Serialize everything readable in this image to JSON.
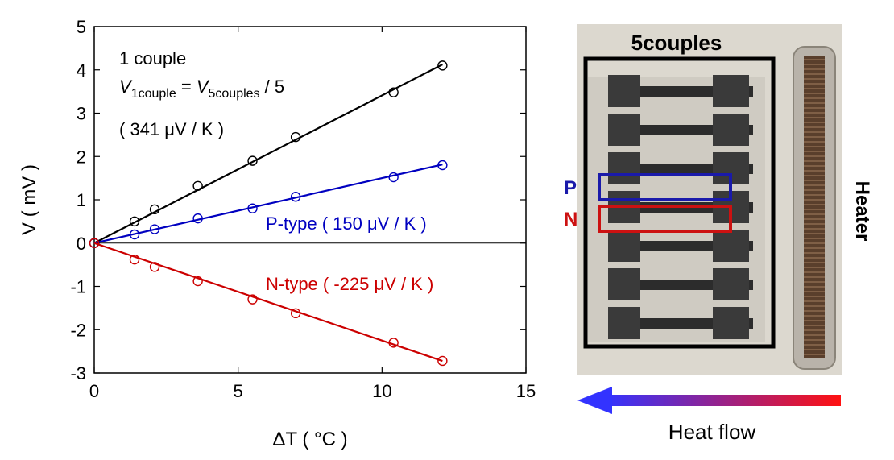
{
  "chart_data": {
    "type": "scatter",
    "xlabel": "ΔT ( °C )",
    "ylabel": "V ( mV )",
    "xlim": [
      0,
      15
    ],
    "ylim": [
      -3,
      5
    ],
    "xticks": [
      "0",
      "5",
      "10",
      "15"
    ],
    "yticks": [
      "-3",
      "-2",
      "-1",
      "0",
      "1",
      "2",
      "3",
      "4",
      "5"
    ],
    "zero_line": true,
    "grid": false,
    "series": [
      {
        "name": "1 couple",
        "color": "#000000",
        "x": [
          0,
          1.4,
          2.1,
          3.6,
          5.5,
          7.0,
          10.4,
          12.1
        ],
        "y": [
          0,
          0.5,
          0.78,
          1.32,
          1.9,
          2.45,
          3.48,
          4.1
        ],
        "fit_slope_mV_per_C": 0.341
      },
      {
        "name": "P-type ( 150 μV / K )",
        "color": "#0000c0",
        "x": [
          0,
          1.4,
          2.1,
          3.6,
          5.5,
          7.0,
          10.4,
          12.1
        ],
        "y": [
          0,
          0.2,
          0.32,
          0.57,
          0.8,
          1.07,
          1.52,
          1.8
        ],
        "fit_slope_mV_per_C": 0.15
      },
      {
        "name": "N-type ( -225 μV / K )",
        "color": "#cc0000",
        "x": [
          0,
          1.4,
          2.1,
          3.6,
          5.5,
          7.0,
          10.4,
          12.1
        ],
        "y": [
          0,
          -0.38,
          -0.55,
          -0.88,
          -1.3,
          -1.62,
          -2.3,
          -2.72
        ],
        "fit_slope_mV_per_C": -0.225
      }
    ],
    "annotations": {
      "couple_title": "1 couple",
      "formula_v1": "V",
      "formula_sub1": "1couple",
      "formula_eq": " = ",
      "formula_v5": "V",
      "formula_sub5": "5couples",
      "formula_div": " / 5",
      "couple_coeff": "( 341 μV / K )",
      "p_label": "P-type ( 150 μV / K )",
      "n_label": "N-type ( -225 μV / K )"
    }
  },
  "photo": {
    "label_couples": "5couples",
    "label_p": "P",
    "label_n": "N",
    "label_heater": "Heater",
    "label_heat_flow": "Heat flow",
    "colors": {
      "p_box": "#1a1aaa",
      "n_box": "#cc1111",
      "arrow_start": "#3333ff",
      "arrow_end": "#ff1111"
    }
  }
}
